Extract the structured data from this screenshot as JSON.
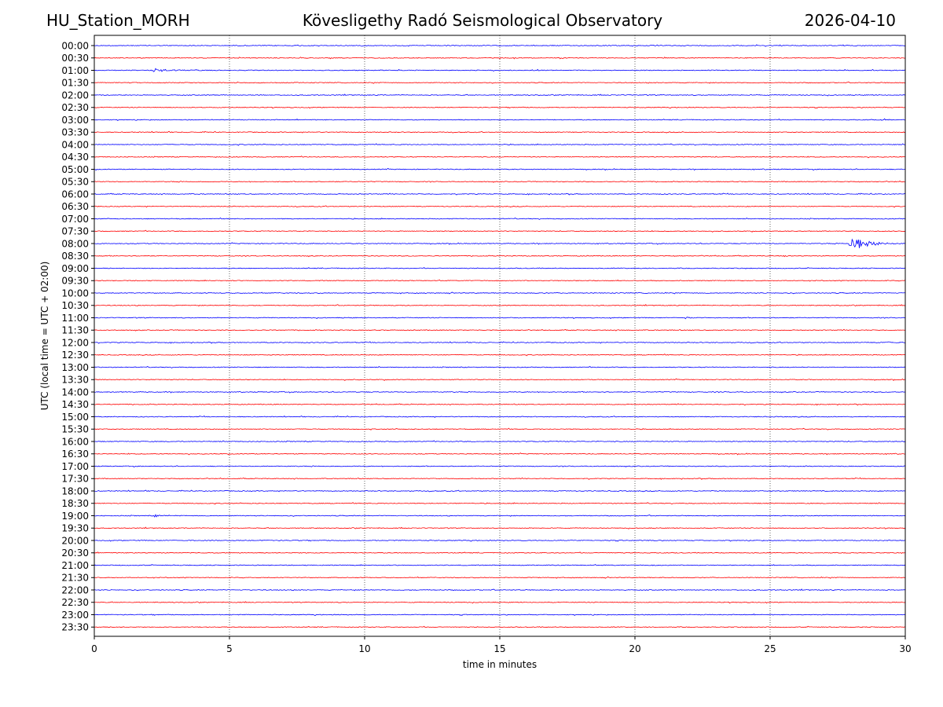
{
  "header": {
    "station": "HU_Station_MORH",
    "observatory": "Kövesligethy Radó Seismological Observatory",
    "date": "2026-04-10"
  },
  "chart_data": {
    "type": "line",
    "title": "Kövesligethy Radó Seismological Observatory",
    "xlabel": "time in minutes",
    "ylabel": "UTC (local time = UTC + 02:00)",
    "xlim": [
      0,
      30
    ],
    "x_ticks": [
      "0",
      "5",
      "10",
      "15",
      "20",
      "25",
      "30"
    ],
    "x_tick_values": [
      0,
      5,
      10,
      15,
      20,
      25,
      30
    ],
    "grid": "vertical dotted at x ticks",
    "trace_colors": [
      "#0000ff",
      "#ff0000"
    ],
    "rows": [
      "00:00",
      "00:30",
      "01:00",
      "01:30",
      "02:00",
      "02:30",
      "03:00",
      "03:30",
      "04:00",
      "04:30",
      "05:00",
      "05:30",
      "06:00",
      "06:30",
      "07:00",
      "07:30",
      "08:00",
      "08:30",
      "09:00",
      "09:30",
      "10:00",
      "10:30",
      "11:00",
      "11:30",
      "12:00",
      "12:30",
      "13:00",
      "13:30",
      "14:00",
      "14:30",
      "15:00",
      "15:30",
      "16:00",
      "16:30",
      "17:00",
      "17:30",
      "18:00",
      "18:30",
      "19:00",
      "19:30",
      "20:00",
      "20:30",
      "21:00",
      "21:30",
      "22:00",
      "22:30",
      "23:00",
      "23:30"
    ],
    "events": [
      {
        "row": "01:00",
        "start_min": 2.1,
        "end_min": 4.2,
        "amplitude": 0.5
      },
      {
        "row": "08:00",
        "start_min": 27.9,
        "end_min": 30.0,
        "amplitude": 2.2
      },
      {
        "row": "08:30",
        "start_min": 25.5,
        "end_min": 25.9,
        "amplitude": 0.35
      },
      {
        "row": "11:00",
        "start_min": 21.8,
        "end_min": 22.6,
        "amplitude": 0.3
      },
      {
        "row": "19:00",
        "start_min": 2.2,
        "end_min": 3.0,
        "amplitude": 0.3
      },
      {
        "row": "12:00",
        "start_min": 29.3,
        "end_min": 30.0,
        "amplitude": 0.25
      },
      {
        "row": "03:00",
        "start_min": 29.0,
        "end_min": 29.6,
        "amplitude": 0.25
      }
    ]
  }
}
